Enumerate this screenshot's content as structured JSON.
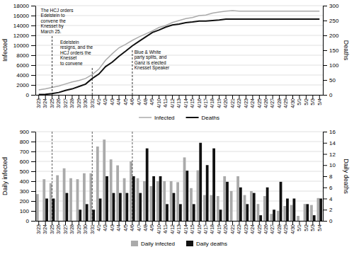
{
  "chart_data": [
    {
      "type": "line",
      "categories": [
        "3/23",
        "3/24",
        "3/25",
        "3/26",
        "3/27",
        "3/28",
        "3/29",
        "3/30",
        "3/31",
        "4/1",
        "4/2",
        "4/3",
        "4/4",
        "4/5",
        "4/6",
        "4/7",
        "4/8",
        "4/9",
        "4/10",
        "4/11",
        "4/12",
        "4/13",
        "4/14",
        "4/15",
        "4/16",
        "4/17",
        "4/18",
        "4/19",
        "4/20",
        "4/21",
        "4/22",
        "4/23",
        "4/24",
        "4/25",
        "4/26",
        "4/27",
        "4/28",
        "4/29",
        "4/30",
        "5/1",
        "5/2",
        "5/3",
        "5/4"
      ],
      "series": [
        {
          "name": "Infected",
          "color": "#aaaaaa",
          "values": [
            1000,
            1200,
            1500,
            1800,
            2200,
            2600,
            2900,
            3300,
            4100,
            5200,
            7000,
            8300,
            9500,
            10200,
            11000,
            11700,
            12300,
            12900,
            13600,
            14000,
            14600,
            15000,
            15400,
            15600,
            16000,
            16100,
            16500,
            16700,
            16900,
            17000,
            16900,
            16900,
            16900,
            16900,
            16900,
            16900,
            16900,
            16900,
            16900,
            16900,
            16900,
            16900,
            16900
          ]
        },
        {
          "name": "Deaths",
          "color": "#111111",
          "axis": "y2",
          "values": [
            1,
            2,
            4,
            8,
            15,
            20,
            28,
            36,
            55,
            70,
            95,
            110,
            130,
            147,
            165,
            180,
            195,
            210,
            218,
            228,
            235,
            238,
            243,
            245,
            248,
            248,
            250,
            252,
            255,
            255,
            255,
            255,
            255,
            255,
            255,
            255,
            255,
            255,
            255,
            255,
            255,
            255,
            255
          ]
        }
      ],
      "y_label": "Infected",
      "y2_label": "Deaths",
      "ylim": [
        0,
        18000
      ],
      "yticks": [
        0,
        2000,
        4000,
        6000,
        8000,
        10000,
        12000,
        14000,
        16000,
        18000
      ],
      "y2lim": [
        0,
        300
      ],
      "y2ticks": [
        0,
        50,
        100,
        150,
        200,
        250,
        300
      ],
      "grid": true,
      "legend": "bottom",
      "annotations": [
        {
          "text": "The HCJ orders\nEdelstein to\nconvene the\nKnesset by\nMarch 25.",
          "x": "3/25"
        },
        {
          "text": "Edelstein\nresigns, and the\nHCJ orders the\nKnesset\nto convene",
          "x": "3/31"
        },
        {
          "text": "Blue & White\nparty splits, and\nGanz is elected\nKnesset Speaker",
          "x": "4/6"
        }
      ]
    },
    {
      "type": "bar",
      "categories": [
        "3/23",
        "3/24",
        "3/25",
        "3/26",
        "3/27",
        "3/28",
        "3/29",
        "3/30",
        "3/31",
        "4/1",
        "4/2",
        "4/3",
        "4/4",
        "4/5",
        "4/6",
        "4/7",
        "4/8",
        "4/9",
        "4/10",
        "4/11",
        "4/12",
        "4/13",
        "4/14",
        "4/15",
        "4/16",
        "4/17",
        "4/18",
        "4/19",
        "4/20",
        "4/21",
        "4/22",
        "4/23",
        "4/24",
        "4/25",
        "4/26",
        "4/27",
        "4/28",
        "4/29",
        "4/30",
        "5/1",
        "5/2",
        "5/3",
        "5/4"
      ],
      "series": [
        {
          "name": "Daily infected",
          "color": "#aaaaaa",
          "values": [
            270,
            420,
            380,
            460,
            530,
            430,
            420,
            480,
            480,
            750,
            820,
            620,
            560,
            430,
            600,
            430,
            400,
            350,
            400,
            400,
            400,
            390,
            640,
            330,
            510,
            260,
            260,
            250,
            450,
            300,
            450,
            260,
            300,
            170,
            250,
            70,
            100,
            150,
            160,
            50,
            170,
            160,
            230
          ]
        },
        {
          "name": "Daily deaths",
          "color": "#111111",
          "axis": "y2",
          "values": [
            0,
            4,
            4,
            0,
            5,
            0,
            2,
            3,
            2,
            4,
            8,
            5,
            5,
            5,
            8,
            5,
            13,
            8,
            8,
            3,
            5,
            3,
            9,
            3,
            14,
            10,
            13,
            2,
            7,
            0,
            6,
            3,
            5,
            1,
            6,
            2,
            7,
            4,
            4,
            0,
            3,
            1,
            4
          ]
        }
      ],
      "y_label": "Daily infected",
      "y2_label": "Daily deaths",
      "ylim": [
        0,
        900
      ],
      "yticks": [
        0,
        100,
        200,
        300,
        400,
        500,
        600,
        700,
        800,
        900
      ],
      "y2lim": [
        0,
        16
      ],
      "y2ticks": [
        0,
        2,
        4,
        6,
        8,
        10,
        12,
        14,
        16
      ],
      "grid": true,
      "legend": "bottom",
      "vlines": [
        "3/25",
        "3/31",
        "4/6"
      ]
    }
  ]
}
